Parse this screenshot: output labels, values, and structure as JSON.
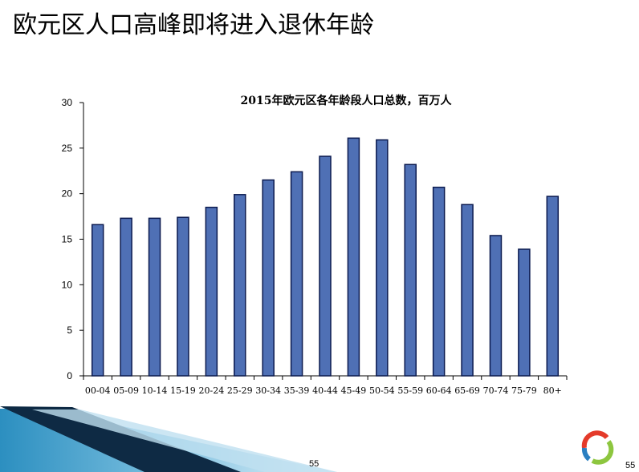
{
  "slide": {
    "title": "欧元区人口高峰即将进入退休年龄",
    "page_number_center": "55",
    "page_number_right": "55"
  },
  "colors": {
    "bar_fill": "#4F70B5",
    "bar_stroke": "#0B1A4F",
    "logo_red": "#E43A2A",
    "logo_green": "#8DC63F",
    "logo_blue": "#2A7FC1"
  },
  "chart_data": {
    "type": "bar",
    "title": "2015年欧元区各年龄段人口总数，百万人",
    "xlabel": "",
    "ylabel": "",
    "ylim": [
      0,
      30
    ],
    "yticks": [
      0,
      5,
      10,
      15,
      20,
      25,
      30
    ],
    "grid": false,
    "categories": [
      "00-04",
      "05-09",
      "10-14",
      "15-19",
      "20-24",
      "25-29",
      "30-34",
      "35-39",
      "40-44",
      "45-49",
      "50-54",
      "55-59",
      "60-64",
      "65-69",
      "70-74",
      "75-79",
      "80+"
    ],
    "values": [
      16.6,
      17.3,
      17.3,
      17.4,
      18.5,
      19.9,
      21.5,
      22.4,
      24.1,
      26.1,
      25.9,
      23.2,
      20.7,
      18.8,
      15.4,
      13.9,
      19.7
    ]
  }
}
